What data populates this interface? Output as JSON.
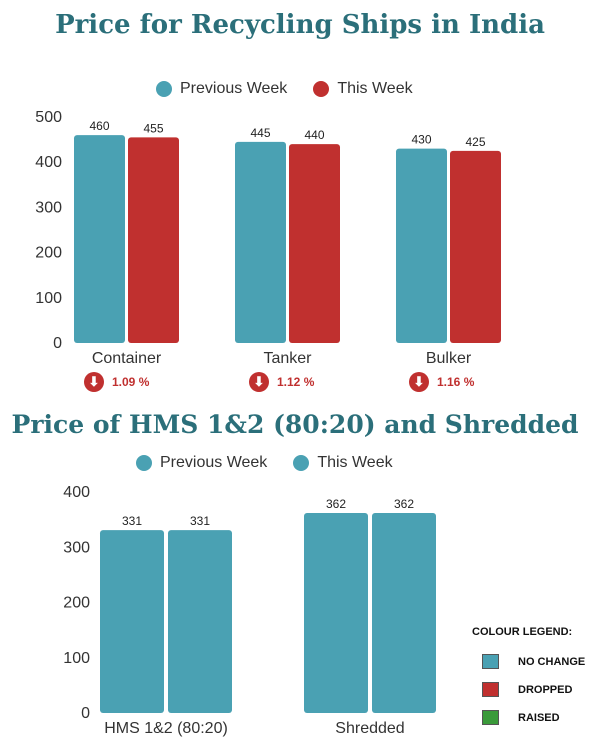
{
  "colors": {
    "previous": "#4aa1b3",
    "this_week": "#c0302f",
    "no_change": "#4aa1b3",
    "dropped": "#c0302f",
    "raised": "#3a9a3a",
    "title": "#2b6f7a"
  },
  "chart_data": [
    {
      "type": "bar",
      "title": "Price for Recycling Ships in India",
      "categories": [
        "Container",
        "Tanker",
        "Bulker"
      ],
      "series": [
        {
          "name": "Previous Week",
          "values": [
            460,
            445,
            430
          ],
          "color": "#4aa1b3"
        },
        {
          "name": "This Week",
          "values": [
            455,
            440,
            425
          ],
          "color": "#c0302f"
        }
      ],
      "ylim": [
        0,
        500
      ],
      "yticks": [
        0,
        100,
        200,
        300,
        400,
        500
      ],
      "legend": "top",
      "grid": false,
      "changes": [
        {
          "text": "1.09 %",
          "direction": "down"
        },
        {
          "text": "1.12 %",
          "direction": "down"
        },
        {
          "text": "1.16 %",
          "direction": "down"
        }
      ]
    },
    {
      "type": "bar",
      "title": "Price of HMS 1&2 (80:20) and Shredded",
      "categories": [
        "HMS 1&2 (80:20)",
        "Shredded"
      ],
      "series": [
        {
          "name": "Previous Week",
          "values": [
            331,
            362
          ],
          "color": "#4aa1b3"
        },
        {
          "name": "This Week",
          "values": [
            331,
            362
          ],
          "color": "#4aa1b3"
        }
      ],
      "ylim": [
        0,
        400
      ],
      "yticks": [
        0,
        100,
        200,
        300,
        400
      ],
      "legend": "top",
      "grid": false
    }
  ],
  "colour_legend": {
    "title": "COLOUR LEGEND:",
    "items": [
      {
        "label": "NO CHANGE",
        "color": "#4aa1b3"
      },
      {
        "label": "DROPPED",
        "color": "#c0302f"
      },
      {
        "label": "RAISED",
        "color": "#3a9a3a"
      }
    ]
  }
}
